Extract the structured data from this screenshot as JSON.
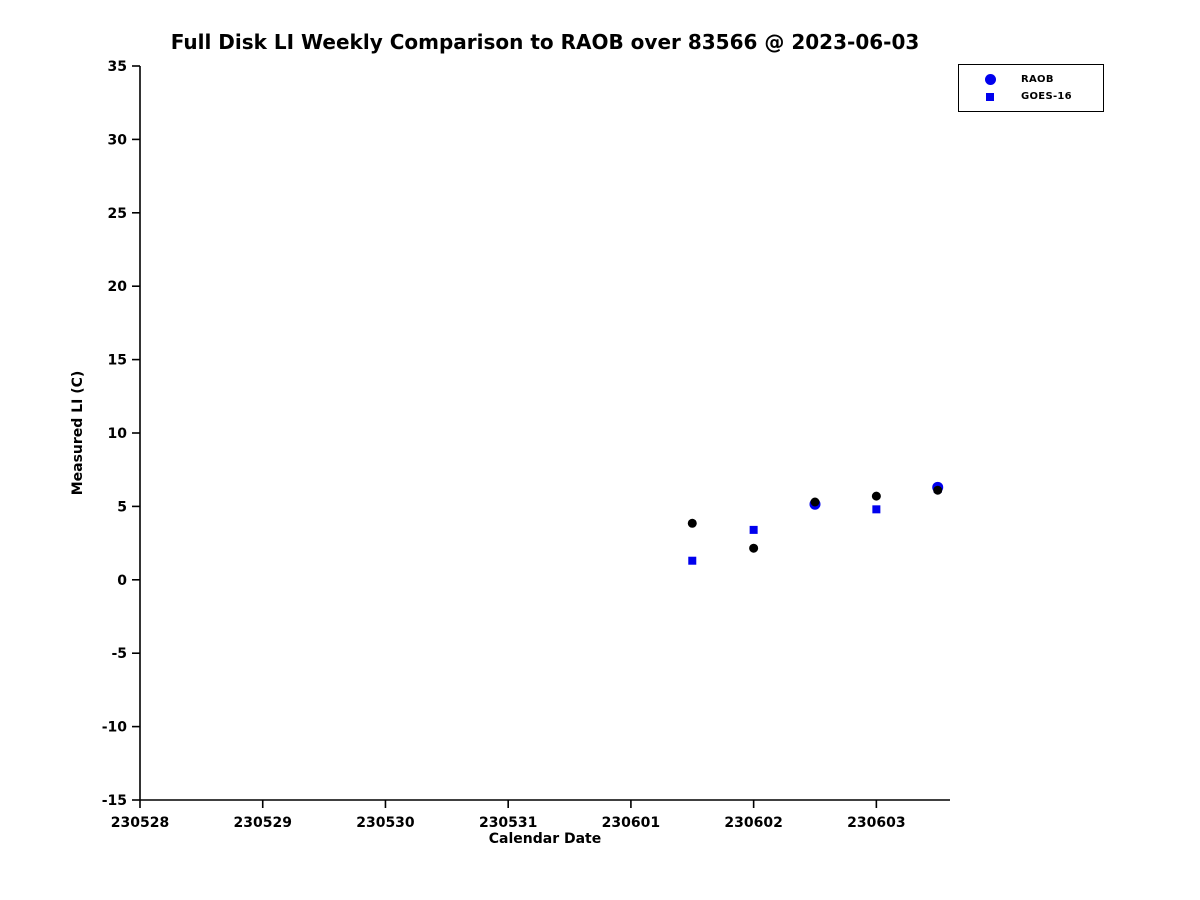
{
  "chart_data": {
    "type": "scatter",
    "title": "Full Disk LI Weekly Comparison to RAOB over 83566 @ 2023-06-03",
    "xlabel": "Calendar Date",
    "ylabel": "Measured LI (C)",
    "x_tick_labels": [
      "230528",
      "230529",
      "230530",
      "230531",
      "230601",
      "230602",
      "230603"
    ],
    "x_tick_positions": [
      0,
      1,
      2,
      3,
      4,
      5,
      6
    ],
    "x_range": [
      0,
      6.6
    ],
    "ylim": [
      -15,
      35
    ],
    "y_ticks": [
      35,
      30,
      25,
      20,
      15,
      10,
      5,
      0,
      -5,
      -10,
      -15
    ],
    "grid": false,
    "legend_position": "top-right",
    "legend": [
      {
        "label": "RAOB",
        "marker": "circle",
        "color": "#0000ee"
      },
      {
        "label": "GOES-16",
        "marker": "square",
        "color": "#0000ee"
      }
    ],
    "series": [
      {
        "name": "GOES-16",
        "marker": "square",
        "color": "#0000ee",
        "size": 8,
        "points": [
          [
            4.5,
            1.3
          ],
          [
            5.0,
            3.4
          ],
          [
            6.0,
            4.8
          ],
          [
            6.5,
            6.2
          ]
        ]
      },
      {
        "name": "RAOB",
        "marker": "circle",
        "color": "#0000ee",
        "size": 11,
        "points": [
          [
            5.5,
            5.15
          ],
          [
            6.5,
            6.3
          ]
        ]
      },
      {
        "name": "unlabeled-black-dots",
        "marker": "circle",
        "color": "#000000",
        "size": 9,
        "points": [
          [
            4.5,
            3.85
          ],
          [
            5.0,
            2.15
          ],
          [
            5.5,
            5.3
          ],
          [
            6.0,
            5.7
          ],
          [
            6.5,
            6.1
          ]
        ]
      }
    ]
  }
}
